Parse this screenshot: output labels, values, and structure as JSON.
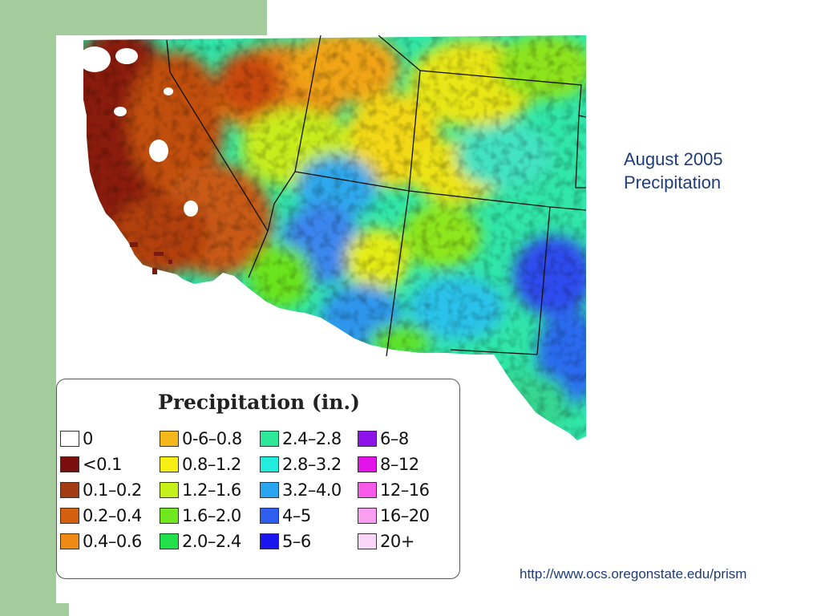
{
  "slide": {
    "title_line1": "August 2005",
    "title_line2": "Precipitation",
    "source_url": "http://www.ocs.oregonstate.edu/prism"
  },
  "legend": {
    "title": "Precipitation (in.)",
    "columns": [
      [
        {
          "label": "0",
          "color": "#ffffff"
        },
        {
          "label": "<0.1",
          "color": "#7a0e0e"
        },
        {
          "label": "0.1–0.2",
          "color": "#a33c12"
        },
        {
          "label": "0.2–0.4",
          "color": "#d2600e"
        },
        {
          "label": "0.4–0.6",
          "color": "#f08a16"
        }
      ],
      [
        {
          "label": "0-6–0.8",
          "color": "#f5b81a"
        },
        {
          "label": "0.8–1.2",
          "color": "#f7ee14"
        },
        {
          "label": "1.2–1.6",
          "color": "#c6f01a"
        },
        {
          "label": "1.6–2.0",
          "color": "#6fe81e"
        },
        {
          "label": "2.0–2.4",
          "color": "#22e04a"
        }
      ],
      [
        {
          "label": "2.4–2.8",
          "color": "#2ee89a"
        },
        {
          "label": "2.8–3.2",
          "color": "#22ecdc"
        },
        {
          "label": "3.2–4.0",
          "color": "#2aa6f0"
        },
        {
          "label": "4–5",
          "color": "#2e5ef0"
        },
        {
          "label": "5–6",
          "color": "#1a14ee"
        }
      ],
      [
        {
          "label": "6–8",
          "color": "#8e12ea"
        },
        {
          "label": "8–12",
          "color": "#e214ea"
        },
        {
          "label": "12–16",
          "color": "#f75ae8"
        },
        {
          "label": "16–20",
          "color": "#fa9ef2"
        },
        {
          "label": "20+",
          "color": "#fcd6fa"
        }
      ]
    ]
  }
}
